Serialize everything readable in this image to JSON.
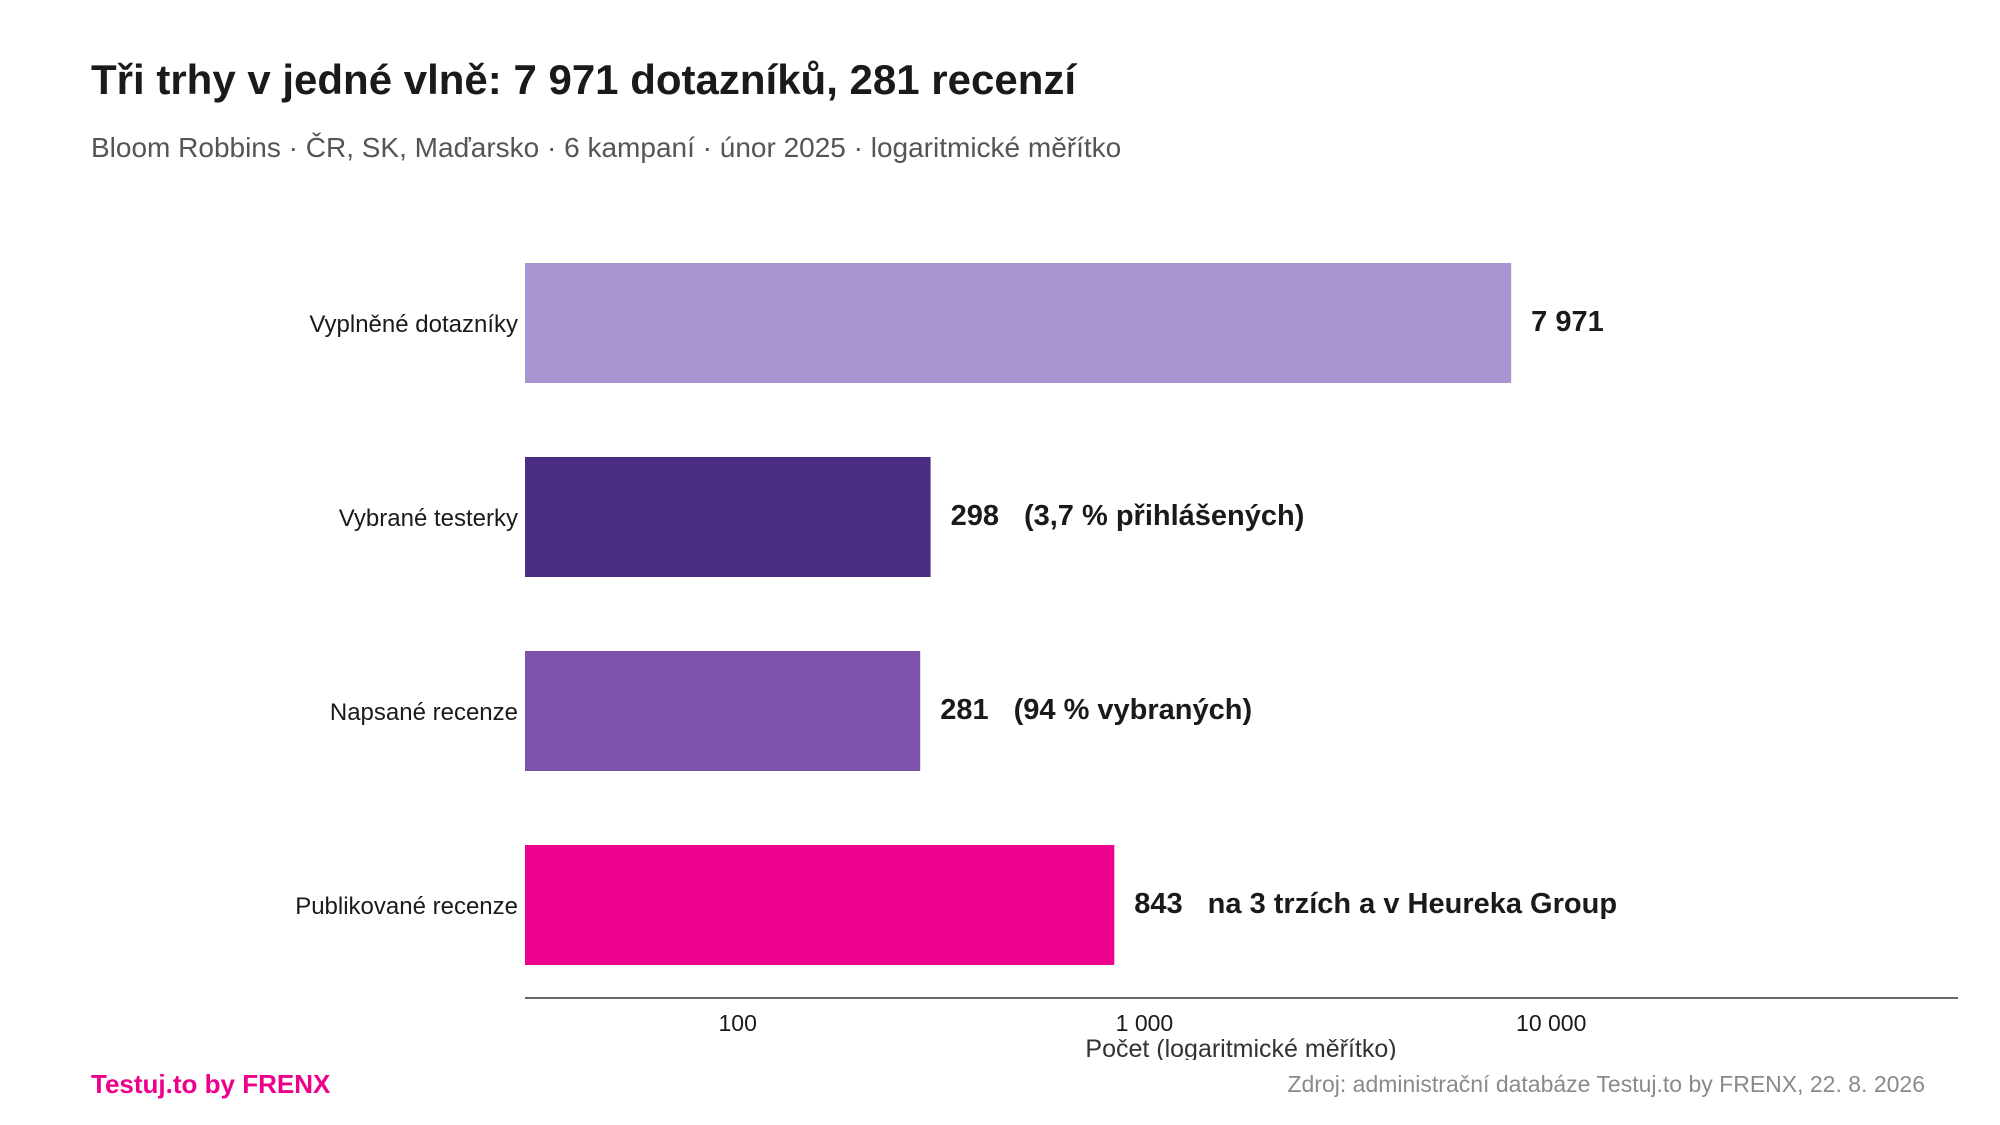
{
  "title": "Tři trhy v jedné vlně: 7 971 dotazníků, 281 recenzí",
  "subtitle": "Bloom Robbins · ČR, SK, Maďarsko · 6 kampaní · únor 2025 · logaritmické měřítko",
  "brand": "Testuj.to by FRENX",
  "source": "Zdroj: administrační databáze Testuj.to by FRENX, 22. 8. 2026",
  "colors": {
    "brand": "#ec008c",
    "text": "#1a1a1a",
    "muted": "#555555",
    "source": "#8a8a8a",
    "axis": "#333333"
  },
  "chart_data": {
    "type": "bar",
    "orientation": "horizontal",
    "scale": "log",
    "xlim": [
      30,
      100000
    ],
    "xlabel": "Počet (logaritmické měřítko)",
    "ticks": [
      {
        "value": 100,
        "label": "100"
      },
      {
        "value": 1000,
        "label": "1 000"
      },
      {
        "value": 10000,
        "label": "10 000"
      }
    ],
    "categories": [
      "Vyplněné dotazníky",
      "Vybrané testerky",
      "Napsané recenze",
      "Publikované recenze"
    ],
    "values": [
      7971,
      298,
      281,
      843
    ],
    "value_labels": [
      "7 971",
      "298",
      "281",
      "843"
    ],
    "annotations": [
      "",
      "(3,7 % přihlášených)",
      "(94 % vybraných)",
      "na 3 trzích a v Heureka Group"
    ],
    "bar_colors": [
      "#a794d1",
      "#4b2d83",
      "#7d52aa",
      "#ec008c"
    ],
    "grid": false,
    "legend": "none"
  }
}
